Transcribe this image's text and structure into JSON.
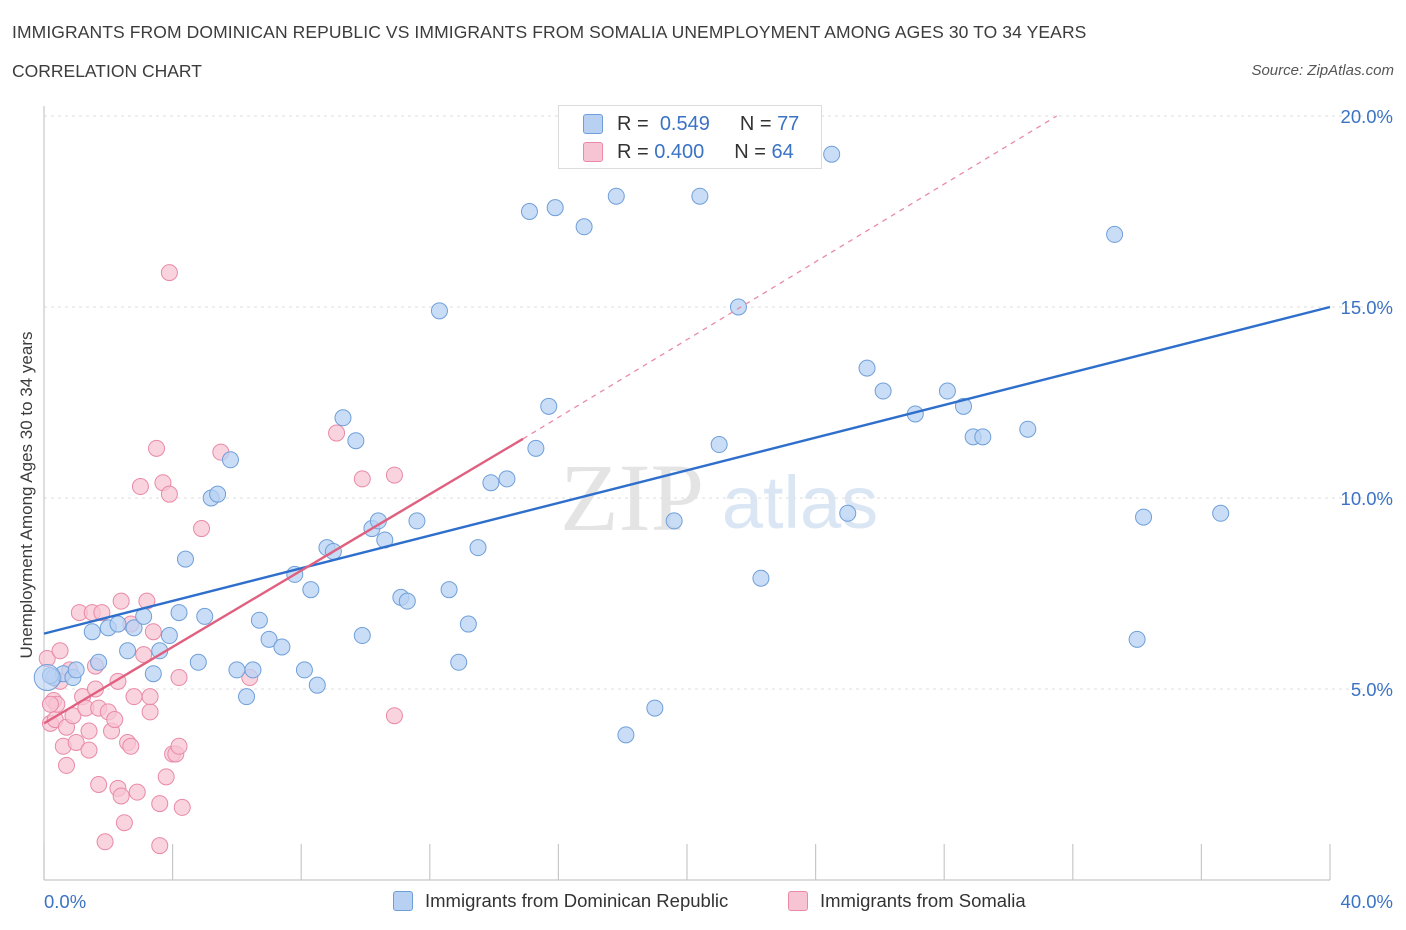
{
  "title": "IMMIGRANTS FROM DOMINICAN REPUBLIC VS IMMIGRANTS FROM SOMALIA UNEMPLOYMENT AMONG AGES 30 TO 34 YEARS",
  "subtitle": "CORRELATION CHART",
  "source": "Source: ZipAtlas.com",
  "watermark": {
    "zip": "ZIP",
    "atlas": "atlas"
  },
  "legend": {
    "r_label": "R =",
    "n_label": "N =",
    "series1": {
      "r": "0.549",
      "n": "77"
    },
    "series2": {
      "r": "0.400",
      "n": "64"
    }
  },
  "colors": {
    "blue_fill": "#b8d1f3",
    "blue_stroke": "#6f9fd9",
    "blue_line": "#2f6fcc",
    "pink_fill": "#f7c4d3",
    "pink_stroke": "#e98aa7",
    "pink_line": "#e0607f",
    "axis_text": "#3b73c4"
  },
  "chart_data": {
    "type": "scatter",
    "title": "IMMIGRANTS FROM DOMINICAN REPUBLIC VS IMMIGRANTS FROM SOMALIA UNEMPLOYMENT AMONG AGES 30 TO 34 YEARS",
    "xlabel": "",
    "ylabel": "Unemployment Among Ages 30 to 34 years",
    "xlim": [
      0,
      40
    ],
    "ylim": [
      0,
      20
    ],
    "x_tick_labels": [
      "0.0%",
      "40.0%"
    ],
    "y_ticks": [
      5,
      10,
      15,
      20
    ],
    "y_tick_labels": [
      "5.0%",
      "10.0%",
      "15.0%",
      "20.0%"
    ],
    "series": [
      {
        "name": "Immigrants from Dominican Republic",
        "r": 0.549,
        "n": 77,
        "trend": {
          "x0": 0,
          "y0": 6.45,
          "x1": 40,
          "y1": 15.0
        },
        "points": [
          [
            0.3,
            5.3
          ],
          [
            0.6,
            5.4
          ],
          [
            0.9,
            5.3
          ],
          [
            1.5,
            6.5
          ],
          [
            1.7,
            5.7
          ],
          [
            2.0,
            6.6
          ],
          [
            2.3,
            6.7
          ],
          [
            2.6,
            6.0
          ],
          [
            2.8,
            6.6
          ],
          [
            3.1,
            6.9
          ],
          [
            3.4,
            5.4
          ],
          [
            3.6,
            6.0
          ],
          [
            3.9,
            6.4
          ],
          [
            4.2,
            7.0
          ],
          [
            4.4,
            8.4
          ],
          [
            4.8,
            5.7
          ],
          [
            5.0,
            6.9
          ],
          [
            5.2,
            10.0
          ],
          [
            5.4,
            10.1
          ],
          [
            5.8,
            11.0
          ],
          [
            6.0,
            5.5
          ],
          [
            6.3,
            4.8
          ],
          [
            6.5,
            5.5
          ],
          [
            6.7,
            6.8
          ],
          [
            7.0,
            6.3
          ],
          [
            7.4,
            6.1
          ],
          [
            7.8,
            8.0
          ],
          [
            8.1,
            5.5
          ],
          [
            8.3,
            7.6
          ],
          [
            8.5,
            5.1
          ],
          [
            8.8,
            8.7
          ],
          [
            9.0,
            8.6
          ],
          [
            9.3,
            12.1
          ],
          [
            9.7,
            11.5
          ],
          [
            9.9,
            6.4
          ],
          [
            10.2,
            9.2
          ],
          [
            10.4,
            9.4
          ],
          [
            10.6,
            8.9
          ],
          [
            11.1,
            7.4
          ],
          [
            11.3,
            7.3
          ],
          [
            11.6,
            9.4
          ],
          [
            12.3,
            14.9
          ],
          [
            12.6,
            7.6
          ],
          [
            12.9,
            5.7
          ],
          [
            13.2,
            6.7
          ],
          [
            13.5,
            8.7
          ],
          [
            13.9,
            10.4
          ],
          [
            14.4,
            10.5
          ],
          [
            15.1,
            17.5
          ],
          [
            15.3,
            11.3
          ],
          [
            15.7,
            12.4
          ],
          [
            15.9,
            17.6
          ],
          [
            16.8,
            17.1
          ],
          [
            17.8,
            17.9
          ],
          [
            18.1,
            3.8
          ],
          [
            19.0,
            4.5
          ],
          [
            19.6,
            9.4
          ],
          [
            20.4,
            17.9
          ],
          [
            21.0,
            11.4
          ],
          [
            21.6,
            15.0
          ],
          [
            22.3,
            7.9
          ],
          [
            24.5,
            19.0
          ],
          [
            25.0,
            9.6
          ],
          [
            25.6,
            13.4
          ],
          [
            26.1,
            12.8
          ],
          [
            27.1,
            12.2
          ],
          [
            28.1,
            12.8
          ],
          [
            28.6,
            12.4
          ],
          [
            28.9,
            11.6
          ],
          [
            29.2,
            11.6
          ],
          [
            30.6,
            11.8
          ],
          [
            33.3,
            16.9
          ],
          [
            34.0,
            6.3
          ],
          [
            34.2,
            9.5
          ],
          [
            36.6,
            9.6
          ],
          [
            0.2,
            5.35
          ],
          [
            1.0,
            5.5
          ]
        ]
      },
      {
        "name": "Immigrants from Somalia",
        "r": 0.4,
        "n": 64,
        "trend": {
          "x0": 0,
          "y0": 4.1,
          "x1": 14.9,
          "y1": 11.55,
          "ext_x1": 31.5,
          "ext_y1": 20.0
        },
        "points": [
          [
            0.1,
            5.8
          ],
          [
            0.2,
            4.1
          ],
          [
            0.3,
            4.7
          ],
          [
            0.35,
            4.2
          ],
          [
            0.4,
            4.6
          ],
          [
            0.5,
            6.0
          ],
          [
            0.6,
            3.5
          ],
          [
            0.7,
            4.0
          ],
          [
            0.7,
            3.0
          ],
          [
            0.8,
            5.5
          ],
          [
            0.9,
            4.3
          ],
          [
            1.0,
            3.6
          ],
          [
            1.1,
            7.0
          ],
          [
            1.2,
            4.8
          ],
          [
            1.3,
            4.5
          ],
          [
            1.4,
            3.9
          ],
          [
            1.4,
            3.4
          ],
          [
            1.5,
            7.0
          ],
          [
            1.6,
            5.0
          ],
          [
            1.7,
            4.5
          ],
          [
            1.7,
            2.5
          ],
          [
            1.8,
            7.0
          ],
          [
            1.9,
            1.0
          ],
          [
            2.0,
            4.4
          ],
          [
            2.1,
            3.9
          ],
          [
            2.2,
            4.2
          ],
          [
            2.3,
            5.2
          ],
          [
            2.3,
            2.4
          ],
          [
            2.4,
            7.3
          ],
          [
            2.4,
            2.2
          ],
          [
            2.5,
            1.5
          ],
          [
            2.6,
            3.6
          ],
          [
            2.7,
            3.5
          ],
          [
            2.7,
            6.7
          ],
          [
            2.8,
            4.8
          ],
          [
            2.9,
            2.3
          ],
          [
            3.0,
            10.3
          ],
          [
            3.1,
            5.9
          ],
          [
            3.2,
            7.3
          ],
          [
            3.3,
            4.4
          ],
          [
            3.3,
            4.8
          ],
          [
            3.4,
            6.5
          ],
          [
            3.5,
            11.3
          ],
          [
            3.6,
            2.0
          ],
          [
            3.6,
            0.9
          ],
          [
            3.7,
            10.4
          ],
          [
            3.8,
            2.7
          ],
          [
            3.9,
            10.1
          ],
          [
            3.9,
            15.9
          ],
          [
            4.0,
            3.3
          ],
          [
            4.1,
            3.3
          ],
          [
            4.2,
            3.5
          ],
          [
            4.2,
            5.3
          ],
          [
            4.3,
            1.9
          ],
          [
            4.9,
            9.2
          ],
          [
            5.5,
            11.2
          ],
          [
            6.4,
            5.3
          ],
          [
            9.1,
            11.7
          ],
          [
            9.9,
            10.5
          ],
          [
            10.9,
            10.6
          ],
          [
            10.9,
            4.3
          ],
          [
            0.2,
            4.6
          ],
          [
            1.6,
            5.6
          ],
          [
            0.5,
            5.2
          ]
        ]
      }
    ]
  },
  "bottom_legend": {
    "series1": "Immigrants from Dominican Republic",
    "series2": "Immigrants from Somalia"
  }
}
